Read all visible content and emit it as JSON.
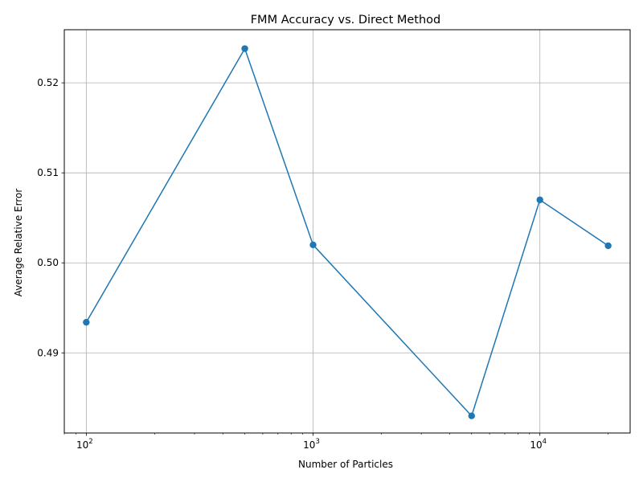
{
  "chart_data": {
    "type": "line",
    "title": "FMM Accuracy vs. Direct Method",
    "xlabel": "Number of Particles",
    "ylabel": "Average Relative Error",
    "x_scale": "log",
    "xlim": [
      80,
      25000
    ],
    "ylim": [
      0.4811,
      0.5259
    ],
    "x_ticks": [
      {
        "value": 100,
        "base": "10",
        "exp": "2"
      },
      {
        "value": 1000,
        "base": "10",
        "exp": "3"
      },
      {
        "value": 10000,
        "base": "10",
        "exp": "4"
      }
    ],
    "y_ticks": [
      {
        "value": 0.49,
        "label": "0.49"
      },
      {
        "value": 0.5,
        "label": "0.50"
      },
      {
        "value": 0.51,
        "label": "0.51"
      },
      {
        "value": 0.52,
        "label": "0.52"
      }
    ],
    "grid": true,
    "series": [
      {
        "color": "#1f77b4",
        "marker": "circle",
        "x": [
          100,
          500,
          1000,
          5000,
          10000,
          20000
        ],
        "y": [
          0.4934,
          0.5238,
          0.502,
          0.483,
          0.507,
          0.5019
        ]
      }
    ]
  }
}
